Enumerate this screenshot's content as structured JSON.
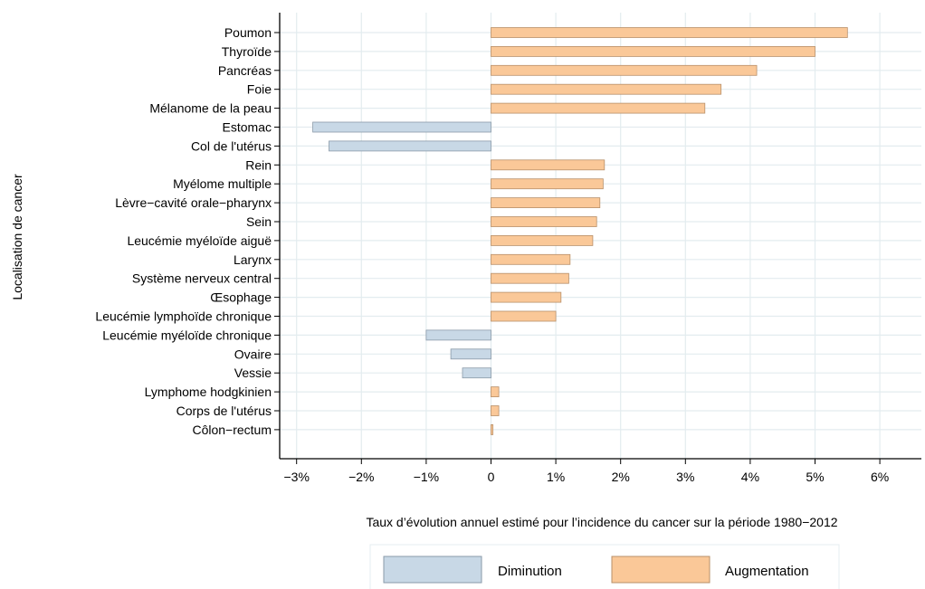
{
  "chart_data": {
    "type": "bar",
    "orientation": "horizontal",
    "categories": [
      "Poumon",
      "Thyroïde",
      "Pancréas",
      "Foie",
      "Mélanome de la peau",
      "Estomac",
      "Col de l'utérus",
      "Rein",
      "Myélome multiple",
      "Lèvre−cavité orale−pharynx",
      "Sein",
      "Leucémie myéloïde aiguë",
      "Larynx",
      "Système nerveux central",
      "Œsophage",
      "Leucémie lymphoïde chronique",
      "Leucémie myéloïde chronique",
      "Ovaire",
      "Vessie",
      "Lymphome hodgkinien",
      "Corps de l'utérus",
      "Côlon−rectum"
    ],
    "values": [
      5.5,
      5.0,
      4.1,
      3.55,
      3.3,
      -2.75,
      -2.5,
      1.75,
      1.73,
      1.68,
      1.63,
      1.57,
      1.22,
      1.2,
      1.08,
      1.0,
      -1.0,
      -0.62,
      -0.44,
      0.12,
      0.12,
      0.03
    ],
    "series": [
      {
        "name": "Diminution",
        "color": "#c8d8e6",
        "stroke": "#8a9aa8",
        "applies_to": "negative values"
      },
      {
        "name": "Augmentation",
        "color": "#fac898",
        "stroke": "#b8906a",
        "applies_to": "positive values"
      }
    ],
    "xlabel": "Taux d’évolution annuel estimé pour l’incidence du cancer sur la période 1980−2012",
    "ylabel": "Localisation de cancer",
    "xlim": [
      -3.3,
      6.7
    ],
    "xticks": [
      -3,
      -2,
      -1,
      0,
      1,
      2,
      3,
      4,
      5,
      6
    ],
    "xtick_labels": [
      "−3%",
      "−2%",
      "−1%",
      "0",
      "1%",
      "2%",
      "3%",
      "4%",
      "5%",
      "6%"
    ],
    "grid": true,
    "grid_color": "#e3ecef",
    "legend_position": "bottom"
  }
}
